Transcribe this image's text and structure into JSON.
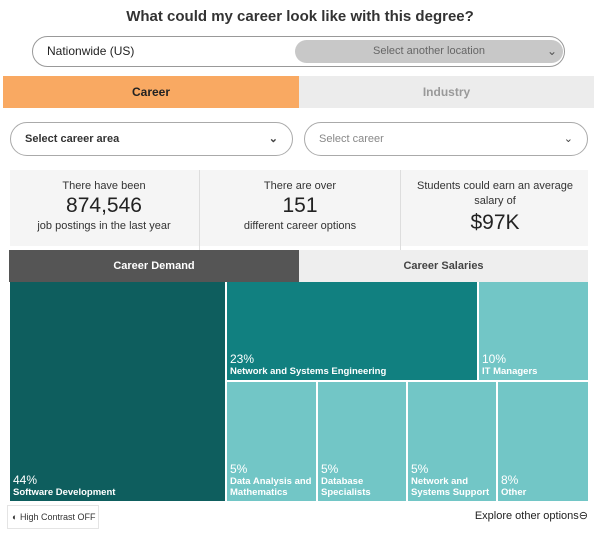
{
  "title": "What could my career look like with this degree?",
  "location": {
    "value": "Nationwide (US)",
    "select_label": "Select another location"
  },
  "tabs": [
    {
      "label": "Career",
      "active": true
    },
    {
      "label": "Industry",
      "active": false
    }
  ],
  "dropdowns": {
    "career_area": "Select career area",
    "career": "Select career"
  },
  "stats": [
    {
      "pre": "There have been",
      "value": "874,546",
      "post": "job postings in the last year"
    },
    {
      "pre": "There are over",
      "value": "151",
      "post": "different career options"
    },
    {
      "pre": "Students could earn an average salary of",
      "value": "$97K"
    }
  ],
  "subtabs": [
    {
      "label": "Career Demand",
      "active": true
    },
    {
      "label": "Career Salaries",
      "active": false
    }
  ],
  "treemap": [
    {
      "pct": "44%",
      "label": "Software Development",
      "color": "#0e5e5e"
    },
    {
      "pct": "23%",
      "label": "Network and Systems Engineering",
      "color": "#118080"
    },
    {
      "pct": "10%",
      "label": "IT Managers",
      "color": "#72c6c6"
    },
    {
      "pct": "5%",
      "label": "Data Analysis and Mathematics",
      "color": "#72c6c6"
    },
    {
      "pct": "5%",
      "label": "Database Specialists",
      "color": "#72c6c6"
    },
    {
      "pct": "5%",
      "label": "Network and Systems Support",
      "color": "#72c6c6"
    },
    {
      "pct": "8%",
      "label": "Other",
      "color": "#72c6c6"
    }
  ],
  "footer": {
    "contrast": "High Contrast OFF",
    "explore": "Explore other options"
  }
}
